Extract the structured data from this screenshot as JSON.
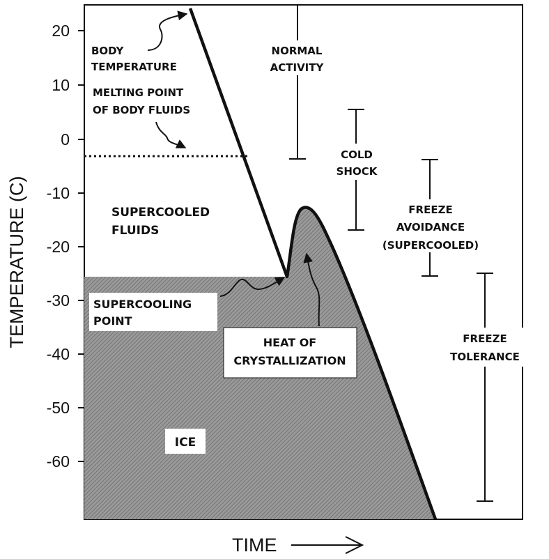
{
  "axes": {
    "y_label": "TEMPERATURE (C)",
    "x_label": "TIME",
    "y_ticks": [
      "20",
      "10",
      "0",
      "-10",
      "-20",
      "-30",
      "-40",
      "-50",
      "-60"
    ],
    "ylim": [
      -70,
      25
    ]
  },
  "regions": {
    "supercooled_fluids": [
      "SUPERCOOLED",
      "FLUIDS"
    ],
    "ice": "ICE"
  },
  "annotations": {
    "body_temperature": [
      "BODY",
      "TEMPERATURE"
    ],
    "melting_point": [
      "MELTING POINT",
      "OF BODY FLUIDS"
    ],
    "supercooling_point": [
      "SUPERCOOLING",
      "POINT"
    ],
    "heat_of_crystallization": [
      "HEAT OF",
      "CRYSTALLIZATION"
    ]
  },
  "ranges": [
    {
      "label": [
        "NORMAL",
        "ACTIVITY"
      ],
      "from": -4,
      "to": 25
    },
    {
      "label": [
        "COLD",
        "SHOCK"
      ],
      "from": -17,
      "to": 5.5
    },
    {
      "label": [
        "FREEZE",
        "AVOIDANCE",
        "(SUPERCOOLED)"
      ],
      "from": -26,
      "to": -4
    },
    {
      "label": [
        "FREEZE",
        "TOLERANCE"
      ],
      "from": -67,
      "to": -25
    }
  ],
  "key_values": {
    "melting_point_c": -3,
    "supercooling_point_c": -26,
    "body_temperature_start_c": 23,
    "crystallization_peak_c": -13
  },
  "colors": {
    "ink": "#111111",
    "ice_fill": "#8c8c8c",
    "background": "#ffffff"
  }
}
